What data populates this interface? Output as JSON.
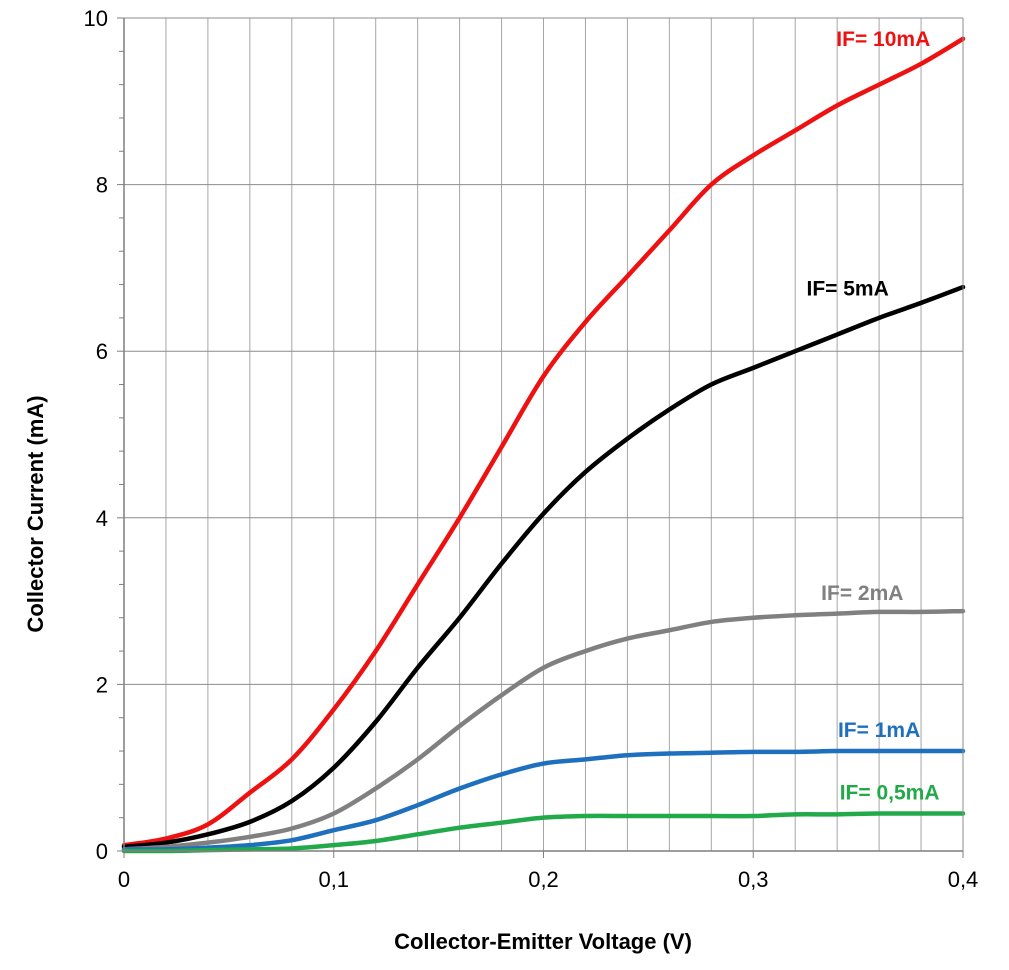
{
  "chart_data": {
    "type": "line",
    "title": "",
    "xlabel": "Collector-Emitter Voltage (V)",
    "ylabel": "Collector Current  (mA)",
    "xlim": [
      0,
      0.4
    ],
    "ylim": [
      0,
      10
    ],
    "x_ticks": [
      {
        "value": 0,
        "label": "0"
      },
      {
        "value": 0.1,
        "label": "0,1"
      },
      {
        "value": 0.2,
        "label": "0,2"
      },
      {
        "value": 0.3,
        "label": "0,3"
      },
      {
        "value": 0.4,
        "label": "0,4"
      }
    ],
    "y_ticks": [
      {
        "value": 0,
        "label": "0"
      },
      {
        "value": 2,
        "label": "2"
      },
      {
        "value": 4,
        "label": "4"
      },
      {
        "value": 6,
        "label": "6"
      },
      {
        "value": 8,
        "label": "8"
      },
      {
        "value": 10,
        "label": "10"
      }
    ],
    "grid": {
      "vertical_step": 0.02,
      "horizontal_step": 2,
      "minor_y_step": 0.4
    },
    "series": [
      {
        "name": "IF= 10mA",
        "color": "#ee1111",
        "points": [
          [
            0,
            0.07
          ],
          [
            0.02,
            0.15
          ],
          [
            0.04,
            0.32
          ],
          [
            0.06,
            0.7
          ],
          [
            0.08,
            1.1
          ],
          [
            0.1,
            1.7
          ],
          [
            0.12,
            2.4
          ],
          [
            0.14,
            3.2
          ],
          [
            0.16,
            4.0
          ],
          [
            0.18,
            4.85
          ],
          [
            0.2,
            5.7
          ],
          [
            0.22,
            6.35
          ],
          [
            0.24,
            6.9
          ],
          [
            0.26,
            7.45
          ],
          [
            0.28,
            8.0
          ],
          [
            0.3,
            8.35
          ],
          [
            0.32,
            8.65
          ],
          [
            0.34,
            8.95
          ],
          [
            0.36,
            9.2
          ],
          [
            0.38,
            9.45
          ],
          [
            0.4,
            9.75
          ]
        ]
      },
      {
        "name": "IF= 5mA",
        "color": "#000000",
        "points": [
          [
            0,
            0.05
          ],
          [
            0.02,
            0.1
          ],
          [
            0.04,
            0.2
          ],
          [
            0.06,
            0.35
          ],
          [
            0.08,
            0.6
          ],
          [
            0.1,
            1.0
          ],
          [
            0.12,
            1.55
          ],
          [
            0.14,
            2.2
          ],
          [
            0.16,
            2.8
          ],
          [
            0.18,
            3.45
          ],
          [
            0.2,
            4.05
          ],
          [
            0.22,
            4.55
          ],
          [
            0.24,
            4.95
          ],
          [
            0.26,
            5.3
          ],
          [
            0.28,
            5.6
          ],
          [
            0.3,
            5.8
          ],
          [
            0.32,
            6.0
          ],
          [
            0.34,
            6.2
          ],
          [
            0.36,
            6.4
          ],
          [
            0.38,
            6.58
          ],
          [
            0.4,
            6.77
          ]
        ]
      },
      {
        "name": "IF= 2mA",
        "color": "#808080",
        "points": [
          [
            0,
            0.02
          ],
          [
            0.02,
            0.05
          ],
          [
            0.04,
            0.1
          ],
          [
            0.06,
            0.17
          ],
          [
            0.08,
            0.27
          ],
          [
            0.1,
            0.45
          ],
          [
            0.12,
            0.75
          ],
          [
            0.14,
            1.1
          ],
          [
            0.16,
            1.5
          ],
          [
            0.18,
            1.87
          ],
          [
            0.2,
            2.2
          ],
          [
            0.22,
            2.4
          ],
          [
            0.24,
            2.55
          ],
          [
            0.26,
            2.65
          ],
          [
            0.28,
            2.75
          ],
          [
            0.3,
            2.8
          ],
          [
            0.32,
            2.83
          ],
          [
            0.34,
            2.85
          ],
          [
            0.36,
            2.87
          ],
          [
            0.38,
            2.87
          ],
          [
            0.4,
            2.88
          ]
        ]
      },
      {
        "name": "IF= 1mA",
        "color": "#1f6fbf",
        "points": [
          [
            0,
            0.02
          ],
          [
            0.02,
            0.02
          ],
          [
            0.04,
            0.04
          ],
          [
            0.06,
            0.07
          ],
          [
            0.08,
            0.13
          ],
          [
            0.1,
            0.25
          ],
          [
            0.12,
            0.37
          ],
          [
            0.14,
            0.55
          ],
          [
            0.16,
            0.75
          ],
          [
            0.18,
            0.92
          ],
          [
            0.2,
            1.05
          ],
          [
            0.22,
            1.1
          ],
          [
            0.24,
            1.15
          ],
          [
            0.26,
            1.17
          ],
          [
            0.28,
            1.18
          ],
          [
            0.3,
            1.19
          ],
          [
            0.32,
            1.19
          ],
          [
            0.34,
            1.2
          ],
          [
            0.36,
            1.2
          ],
          [
            0.38,
            1.2
          ],
          [
            0.4,
            1.2
          ]
        ]
      },
      {
        "name": "IF= 0,5mA",
        "color": "#22aa4a",
        "points": [
          [
            0,
            0.0
          ],
          [
            0.02,
            0.0
          ],
          [
            0.04,
            0.01
          ],
          [
            0.06,
            0.02
          ],
          [
            0.08,
            0.03
          ],
          [
            0.1,
            0.07
          ],
          [
            0.12,
            0.12
          ],
          [
            0.14,
            0.2
          ],
          [
            0.16,
            0.28
          ],
          [
            0.18,
            0.34
          ],
          [
            0.2,
            0.4
          ],
          [
            0.22,
            0.42
          ],
          [
            0.24,
            0.42
          ],
          [
            0.26,
            0.42
          ],
          [
            0.28,
            0.42
          ],
          [
            0.3,
            0.42
          ],
          [
            0.32,
            0.44
          ],
          [
            0.34,
            0.44
          ],
          [
            0.36,
            0.45
          ],
          [
            0.38,
            0.45
          ],
          [
            0.4,
            0.45
          ]
        ]
      }
    ],
    "annotations": [
      {
        "text": "IF= 10mA",
        "series": 0,
        "x": 0.362,
        "y": 9.75
      },
      {
        "text": "IF= 5mA",
        "series": 1,
        "x": 0.345,
        "y": 6.75
      },
      {
        "text": "IF= 2mA",
        "series": 2,
        "x": 0.352,
        "y": 3.1
      },
      {
        "text": "IF= 1mA",
        "series": 3,
        "x": 0.36,
        "y": 1.45
      },
      {
        "text": "IF= 0,5mA",
        "series": 4,
        "x": 0.365,
        "y": 0.7
      }
    ]
  }
}
